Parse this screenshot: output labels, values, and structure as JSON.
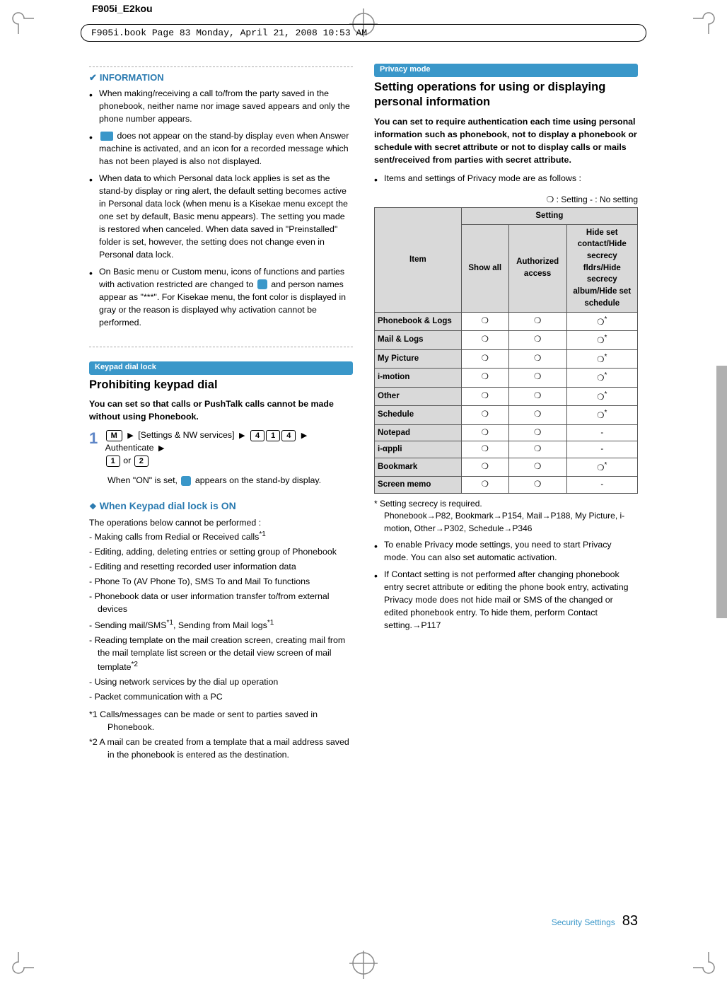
{
  "meta": {
    "filename_header": "F905i_E2kou",
    "bookline": "F905i.book  Page 83  Monday, April 21, 2008  10:53 AM",
    "footer_section": "Security Settings",
    "page_number": "83"
  },
  "col1": {
    "info_title": "INFORMATION",
    "bullets": [
      "When making/receiving a call to/from the party saved in the phonebook,  neither name nor image saved appears and only the phone number appears.",
      "__ICON__ does not appear on the stand-by display even when Answer machine is activated, and an icon for a recorded message which has not been played is also not displayed.",
      "When data to which Personal data lock applies is set as the stand-by display or ring alert, the default setting becomes active in Personal data lock (when menu is a Kisekae menu except the one set by default, Basic menu appears). The setting you made is restored when canceled. When data saved in \"Preinstalled\" folder is set, however, the setting does not change even in Personal data lock.",
      "On Basic menu or Custom menu, icons of functions and parties with activation restricted are changed to __ICONR__ and person names appear as \"***\". For Kisekae menu, the font color is displayed in gray or the reason is displayed why activation cannot be performed."
    ],
    "tag1": "Keypad dial lock",
    "head1": "Prohibiting keypad dial",
    "lead1": "You can set so that calls or PushTalk calls cannot be made without using Phonebook.",
    "step_label": "[Settings & NW services]",
    "step_tail": "Authenticate",
    "or": "or",
    "keys": {
      "m": "M",
      "k4": "4",
      "k1": "1",
      "ka": "1",
      "kb": "2"
    },
    "step_note_pre": "When \"ON\" is set, ",
    "step_note_post": " appears on the stand-by display.",
    "sub1": "When Keypad dial lock is ON",
    "ops_intro": "The operations below cannot be performed :",
    "ops": [
      "- Making calls from Redial or Received calls*1",
      "- Editing, adding, deleting entries or setting group of Phonebook",
      "- Editing and resetting recorded user information data",
      "- Phone To (AV Phone To), SMS To and Mail To functions",
      "- Phonebook data or user information transfer to/from external devices",
      "- Sending mail/SMS*1, Sending from Mail logs*1",
      "- Reading template on the mail creation screen, creating mail from the mail template list screen or the  detail view screen of mail template*2",
      "- Using network services by the dial up operation",
      "- Packet communication with a PC"
    ],
    "stars": [
      "*1   Calls/messages can be made or sent to parties saved in Phonebook.",
      "*2   A mail can be created from a template that a mail address saved in the phonebook is entered as the destination."
    ]
  },
  "col2": {
    "tag": "Privacy mode",
    "head": "Setting operations for using or displaying personal information",
    "lead": "You can set to require authentication each time using personal information such as phonebook, not to display a phonebook or schedule with secret attribute or not to display calls or mails sent/received from parties with secret attribute.",
    "bullet1": "Items and settings of Privacy mode are as follows :",
    "legend": "❍ : Setting  - : No setting",
    "table": {
      "head_item": "Item",
      "head_setting": "Setting",
      "head_cols": [
        "Show all",
        "Authorized access",
        "Hide set contact/Hide secrecy fldrs/Hide secrecy album/Hide set schedule"
      ],
      "rows": [
        {
          "item": "Phonebook & Logs",
          "c": [
            "❍",
            "❍",
            "❍*"
          ]
        },
        {
          "item": "Mail & Logs",
          "c": [
            "❍",
            "❍",
            "❍*"
          ]
        },
        {
          "item": "My Picture",
          "c": [
            "❍",
            "❍",
            "❍*"
          ]
        },
        {
          "item": "i-motion",
          "c": [
            "❍",
            "❍",
            "❍*"
          ]
        },
        {
          "item": "Other",
          "c": [
            "❍",
            "❍",
            "❍*"
          ]
        },
        {
          "item": "Schedule",
          "c": [
            "❍",
            "❍",
            "❍*"
          ]
        },
        {
          "item": "Notepad",
          "c": [
            "❍",
            "❍",
            "-"
          ]
        },
        {
          "item": "i-αppli",
          "c": [
            "❍",
            "❍",
            "-"
          ]
        },
        {
          "item": "Bookmark",
          "c": [
            "❍",
            "❍",
            "❍*"
          ]
        },
        {
          "item": "Screen memo",
          "c": [
            "❍",
            "❍",
            "-"
          ]
        }
      ]
    },
    "foot_star1": "*   Setting secrecy is required.",
    "foot_star2": "Phonebook→P82, Bookmark→P154, Mail→P188, My Picture, i-motion, Other→P302, Schedule→P346",
    "foot_b1": "To enable Privacy mode settings, you need to start Privacy mode. You can also set automatic activation.",
    "foot_b2": "If Contact setting is not performed after changing phonebook entry secret attribute or editing the phone book entry, activating Privacy mode does not hide mail or SMS of the changed or edited phonebook entry. To hide them, perform Contact setting.→P117"
  },
  "marks": {
    "circle_d": 36,
    "color": "#888888"
  }
}
